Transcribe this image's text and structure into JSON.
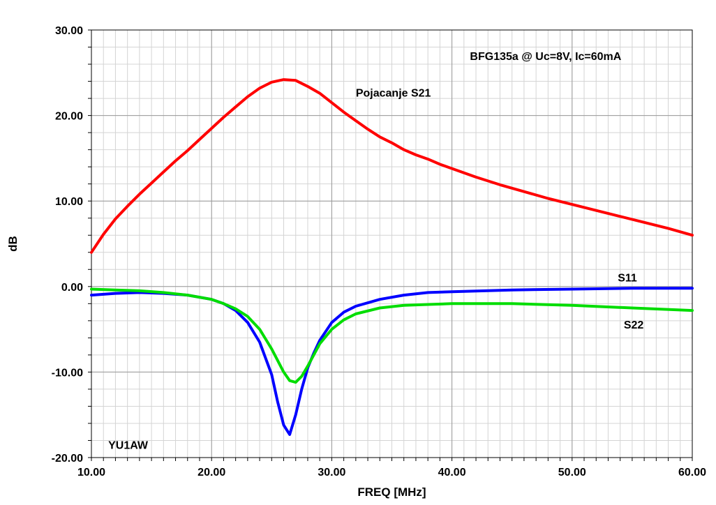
{
  "chart_data": {
    "type": "line",
    "title": "",
    "xlabel": "FREQ [MHz]",
    "ylabel": "dB",
    "xlim": [
      10,
      60
    ],
    "ylim": [
      -20,
      30
    ],
    "x_ticks": [
      10,
      20,
      30,
      40,
      50,
      60
    ],
    "x_tick_labels": [
      "10.00",
      "20.00",
      "30.00",
      "40.00",
      "50.00",
      "60.00"
    ],
    "y_ticks": [
      30,
      20,
      10,
      0,
      -10,
      -20
    ],
    "y_tick_labels": [
      "30.00",
      "20.00",
      "10.00",
      "0.00",
      "-10.00",
      "-20.00"
    ],
    "x_minor_step": 1,
    "y_minor_step": 2,
    "grid": true,
    "annotations": [
      {
        "text": "BFG135a @ Uc=8V, Ic=60mA",
        "x": 41.5,
        "y": 26.5
      },
      {
        "text": "Pojacanje S21",
        "x": 32.0,
        "y": 22.2
      },
      {
        "text": "S11",
        "x": 53.8,
        "y": 0.6
      },
      {
        "text": "S22",
        "x": 54.3,
        "y": -4.9
      },
      {
        "text": "YU1AW",
        "x": 11.4,
        "y": -19.0
      }
    ],
    "series": [
      {
        "color": "#ff0000",
        "x": [
          10,
          11,
          12,
          13,
          14,
          15,
          16,
          17,
          18,
          19,
          20,
          21,
          22,
          23,
          24,
          25,
          26,
          27,
          28,
          29,
          30,
          31,
          32,
          33,
          34,
          35,
          36,
          37,
          38,
          39,
          40,
          42,
          44,
          46,
          48,
          50,
          52,
          54,
          56,
          58,
          60
        ],
        "y": [
          4.0,
          6.1,
          7.9,
          9.4,
          10.8,
          12.1,
          13.4,
          14.7,
          15.9,
          17.2,
          18.5,
          19.8,
          21.0,
          22.2,
          23.2,
          23.9,
          24.2,
          24.1,
          23.4,
          22.6,
          21.5,
          20.4,
          19.4,
          18.4,
          17.5,
          16.8,
          16.0,
          15.4,
          14.9,
          14.3,
          13.8,
          12.8,
          11.9,
          11.1,
          10.3,
          9.6,
          8.9,
          8.2,
          7.5,
          6.8,
          6.0
        ]
      },
      {
        "name": "S11",
        "color": "#0000ff",
        "x": [
          10,
          12,
          14,
          16,
          18,
          20,
          21,
          22,
          23,
          24,
          25,
          25.5,
          26,
          26.5,
          27,
          27.5,
          28,
          28.5,
          29,
          30,
          31,
          32,
          34,
          36,
          38,
          40,
          45,
          50,
          55,
          60
        ],
        "y": [
          -1.0,
          -0.8,
          -0.7,
          -0.8,
          -1.0,
          -1.5,
          -2.0,
          -2.8,
          -4.2,
          -6.5,
          -10.3,
          -13.5,
          -16.2,
          -17.3,
          -15.0,
          -12.0,
          -9.5,
          -7.8,
          -6.3,
          -4.2,
          -3.0,
          -2.3,
          -1.5,
          -1.0,
          -0.7,
          -0.6,
          -0.4,
          -0.3,
          -0.2,
          -0.2
        ]
      },
      {
        "name": "S22",
        "color": "#00dd00",
        "x": [
          10,
          12,
          14,
          16,
          18,
          20,
          21,
          22,
          23,
          24,
          25,
          26,
          26.5,
          27,
          27.5,
          28,
          28.5,
          29,
          30,
          31,
          32,
          34,
          36,
          38,
          40,
          45,
          50,
          55,
          60
        ],
        "y": [
          -0.3,
          -0.4,
          -0.5,
          -0.7,
          -1.0,
          -1.5,
          -2.0,
          -2.6,
          -3.5,
          -5.0,
          -7.3,
          -10.0,
          -11.0,
          -11.2,
          -10.5,
          -9.3,
          -8.0,
          -6.7,
          -5.0,
          -3.9,
          -3.2,
          -2.5,
          -2.2,
          -2.1,
          -2.0,
          -2.0,
          -2.2,
          -2.5,
          -2.8
        ]
      }
    ]
  }
}
